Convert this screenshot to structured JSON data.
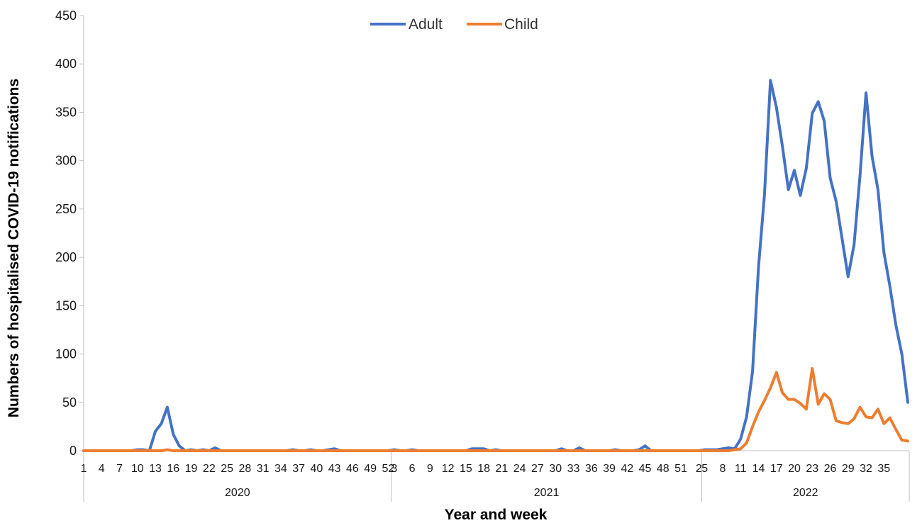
{
  "chart_data": {
    "type": "line",
    "xlabel": "Year and week",
    "ylabel": "Numbers of hospitalised  COVID-19 notifications",
    "ylim": [
      0,
      450
    ],
    "yticks": [
      0,
      50,
      100,
      150,
      200,
      250,
      300,
      350,
      400,
      450
    ],
    "grid": false,
    "legend_position": "top-center",
    "years": [
      {
        "label": "2020",
        "weeks": 52
      },
      {
        "label": "2021",
        "weeks": 52
      },
      {
        "label": "2022",
        "weeks": 35
      }
    ],
    "x_tick_labels": [
      "1",
      "4",
      "7",
      "10",
      "13",
      "16",
      "19",
      "22",
      "25",
      "28",
      "31",
      "34",
      "37",
      "40",
      "43",
      "46",
      "49",
      "52",
      "3",
      "6",
      "9",
      "12",
      "15",
      "18",
      "21",
      "24",
      "27",
      "30",
      "33",
      "36",
      "39",
      "42",
      "45",
      "48",
      "51",
      "2",
      "5",
      "8",
      "11",
      "14",
      "17",
      "20",
      "23",
      "26",
      "29",
      "32",
      "35"
    ],
    "series": [
      {
        "name": "Adult",
        "color": "#4472C4",
        "values": [
          0,
          0,
          0,
          0,
          0,
          0,
          0,
          0,
          0,
          1,
          1,
          0,
          20,
          28,
          45,
          17,
          5,
          0,
          1,
          0,
          1,
          0,
          3,
          0,
          0,
          0,
          0,
          0,
          0,
          0,
          0,
          0,
          0,
          0,
          0,
          1,
          0,
          0,
          1,
          0,
          0,
          1,
          2,
          0,
          0,
          0,
          0,
          0,
          0,
          0,
          0,
          0,
          1,
          0,
          0,
          1,
          0,
          0,
          0,
          0,
          0,
          0,
          0,
          0,
          0,
          2,
          2,
          2,
          0,
          1,
          0,
          0,
          0,
          0,
          0,
          0,
          0,
          0,
          0,
          0,
          2,
          0,
          0,
          3,
          0,
          0,
          0,
          0,
          0,
          1,
          0,
          0,
          0,
          1,
          5,
          0,
          0,
          0,
          0,
          0,
          0,
          0,
          0,
          0,
          1,
          1,
          1,
          2,
          3,
          2,
          12,
          35,
          82,
          190,
          265,
          383,
          355,
          315,
          270,
          290,
          264,
          292,
          349,
          361,
          341,
          282,
          258,
          219,
          180,
          213,
          285,
          370,
          305,
          270,
          205,
          170,
          130,
          100,
          50
        ]
      },
      {
        "name": "Child",
        "color": "#ED7D31",
        "values": [
          0,
          0,
          0,
          0,
          0,
          0,
          0,
          0,
          0,
          0,
          0,
          0,
          0,
          0,
          1,
          0,
          0,
          0,
          0,
          0,
          0,
          0,
          0,
          0,
          0,
          0,
          0,
          0,
          0,
          0,
          0,
          0,
          0,
          0,
          0,
          0,
          0,
          0,
          0,
          0,
          0,
          0,
          0,
          0,
          0,
          0,
          0,
          0,
          0,
          0,
          0,
          0,
          0,
          0,
          0,
          0,
          0,
          0,
          0,
          0,
          0,
          0,
          0,
          0,
          0,
          0,
          0,
          0,
          0,
          0,
          0,
          0,
          0,
          0,
          0,
          0,
          0,
          0,
          0,
          0,
          0,
          0,
          0,
          0,
          0,
          0,
          0,
          0,
          0,
          0,
          0,
          0,
          0,
          0,
          0,
          0,
          0,
          0,
          0,
          0,
          0,
          0,
          0,
          0,
          0,
          0,
          0,
          0,
          0,
          1,
          2,
          8,
          25,
          40,
          52,
          65,
          81,
          60,
          53,
          53,
          49,
          43,
          85,
          48,
          59,
          53,
          31,
          29,
          28,
          33,
          45,
          35,
          34,
          43,
          28,
          34,
          22,
          11,
          10
        ]
      }
    ]
  }
}
